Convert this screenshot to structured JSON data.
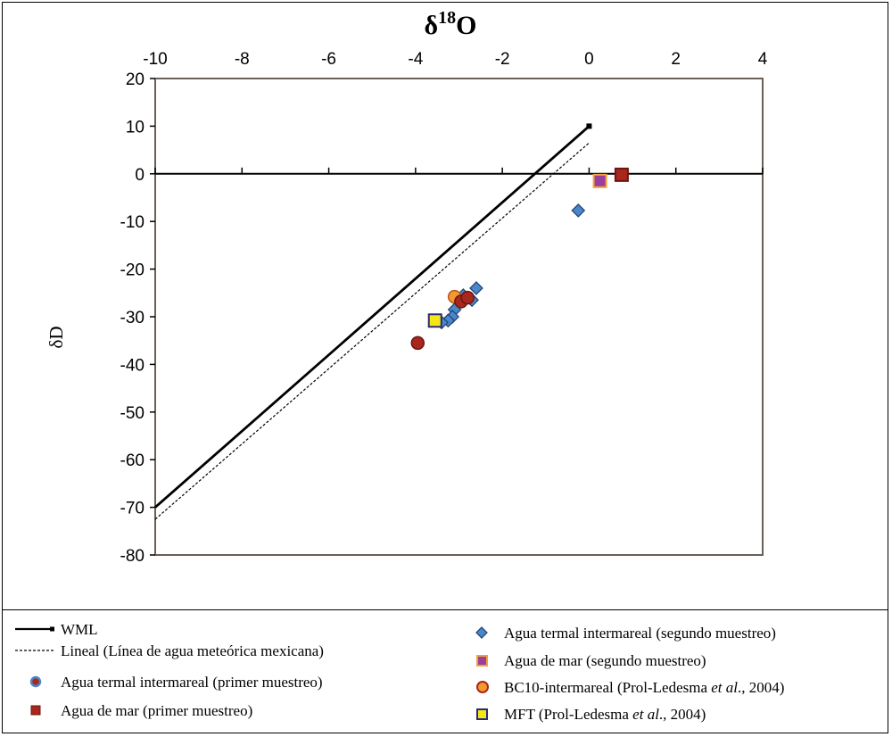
{
  "chart_data": {
    "type": "scatter",
    "title": "",
    "xlabel_base": "δ",
    "xlabel_sup": "18",
    "xlabel_rest": "O",
    "ylabel": "δD",
    "xlim": [
      -10,
      4
    ],
    "ylim": [
      -80,
      20
    ],
    "x_ticks": [
      "-10",
      "-8",
      "-6",
      "-4",
      "-2",
      "0",
      "2",
      "4"
    ],
    "x_tick_values": [
      -10,
      -8,
      -6,
      -4,
      -2,
      0,
      2,
      4
    ],
    "y_ticks": [
      "20",
      "10",
      "0",
      "-10",
      "-20",
      "-30",
      "-40",
      "-50",
      "-60",
      "-70",
      "-80"
    ],
    "y_tick_values": [
      20,
      10,
      0,
      -10,
      -20,
      -30,
      -40,
      -50,
      -60,
      -70,
      -80
    ],
    "x_axis_position": "top",
    "grid": false,
    "lines": [
      {
        "name": "WML",
        "style": "solid",
        "color": "#000000",
        "x": [
          -10,
          0
        ],
        "y": [
          -70,
          10
        ]
      },
      {
        "name": "Lineal (Línea de agua meteórica mexicana)",
        "style": "dashed",
        "color": "#000000",
        "x": [
          -10,
          0
        ],
        "y": [
          -72.5,
          6.5
        ]
      }
    ],
    "series": [
      {
        "name": "Agua termal intermareal (segundo muestreo)",
        "marker": "diamond",
        "color": "#4a86c8",
        "stroke": "#1f3f73",
        "points": [
          [
            -0.25,
            -7.7
          ],
          [
            -2.6,
            -24
          ],
          [
            -2.7,
            -26.5
          ],
          [
            -2.9,
            -25.5
          ],
          [
            -3.0,
            -27
          ],
          [
            -3.1,
            -28.5
          ],
          [
            -3.15,
            -30
          ],
          [
            -3.25,
            -30.8
          ],
          [
            -3.4,
            -31.2
          ]
        ]
      },
      {
        "name": "Agua de mar  (segundo muestreo)",
        "marker": "square",
        "color": "#9b3f9e",
        "stroke": "#f2a23a",
        "points": [
          [
            0.25,
            -1.5
          ]
        ]
      },
      {
        "name": "BC10-intermareal (Prol-Ledesma et al., 2004)",
        "marker": "circle",
        "color": "#f29a2e",
        "stroke": "#b3561a",
        "points": [
          [
            -3.1,
            -25.8
          ]
        ]
      },
      {
        "name": "MFT (Prol-Ledesma et al., 2004)",
        "marker": "square",
        "color": "#f5e616",
        "stroke": "#2a2a78",
        "points": [
          [
            -3.55,
            -30.8
          ]
        ]
      },
      {
        "name": "Agua termal intermareal (primer muestreo)",
        "marker": "circle",
        "color": "#a8281e",
        "stroke": "#6d1510",
        "points": [
          [
            -3.95,
            -35.5
          ],
          [
            -2.95,
            -26.8
          ],
          [
            -2.8,
            -26.0
          ]
        ]
      },
      {
        "name": "Agua de mar  (primer muestreo)",
        "marker": "square",
        "color": "#a8281e",
        "stroke": "#6d1510",
        "points": [
          [
            0.75,
            -0.2
          ]
        ]
      }
    ]
  },
  "legend": {
    "wml": "WML",
    "lineal": "Lineal (Línea de agua meteórica mexicana)",
    "termal_primer": "Agua termal intermareal (primer muestreo)",
    "mar_primer": "Agua de mar  (primer muestreo)",
    "termal_segundo": "Agua termal intermareal (segundo muestreo)",
    "mar_segundo": "Agua de mar  (segundo muestreo)",
    "bc10_main": "BC10-intermareal (Prol-Ledesma ",
    "bc10_ital": "et al",
    "bc10_end": "., 2004)",
    "mft_main": "MFT (Prol-Ledesma ",
    "mft_ital": "et al",
    "mft_end": "., 2004)"
  }
}
